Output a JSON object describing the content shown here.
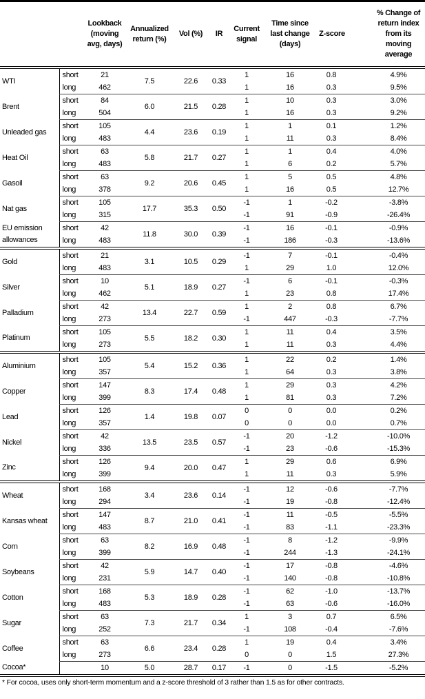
{
  "headers": {
    "name": "",
    "term": "",
    "lookback": "Lookback (moving avg, days)",
    "annual": "Annualized return (%)",
    "vol": "Vol (%)",
    "ir": "IR",
    "signal": "Current signal",
    "time": "Time since last change (days)",
    "z": "Z-score",
    "pct": "% Change of return index from its moving average"
  },
  "groups": [
    {
      "items": [
        {
          "name": "WTI",
          "annual": "7.5",
          "vol": "22.6",
          "ir": "0.33",
          "rows": [
            {
              "term": "short",
              "lookback": "21",
              "signal": "1",
              "time": "16",
              "z": "0.8",
              "pct": "4.9%"
            },
            {
              "term": "long",
              "lookback": "462",
              "signal": "1",
              "time": "16",
              "z": "0.3",
              "pct": "9.5%"
            }
          ]
        },
        {
          "name": "Brent",
          "annual": "6.0",
          "vol": "21.5",
          "ir": "0.28",
          "rows": [
            {
              "term": "short",
              "lookback": "84",
              "signal": "1",
              "time": "10",
              "z": "0.3",
              "pct": "3.0%"
            },
            {
              "term": "long",
              "lookback": "504",
              "signal": "1",
              "time": "16",
              "z": "0.3",
              "pct": "9.2%"
            }
          ]
        },
        {
          "name": "Unleaded gas",
          "annual": "4.4",
          "vol": "23.6",
          "ir": "0.19",
          "rows": [
            {
              "term": "short",
              "lookback": "105",
              "signal": "1",
              "time": "1",
              "z": "0.1",
              "pct": "1.2%"
            },
            {
              "term": "long",
              "lookback": "483",
              "signal": "1",
              "time": "11",
              "z": "0.3",
              "pct": "8.4%"
            }
          ]
        },
        {
          "name": "Heat Oil",
          "annual": "5.8",
          "vol": "21.7",
          "ir": "0.27",
          "rows": [
            {
              "term": "short",
              "lookback": "63",
              "signal": "1",
              "time": "1",
              "z": "0.4",
              "pct": "4.0%"
            },
            {
              "term": "long",
              "lookback": "483",
              "signal": "1",
              "time": "6",
              "z": "0.2",
              "pct": "5.7%"
            }
          ]
        },
        {
          "name": "Gasoil",
          "annual": "9.2",
          "vol": "20.6",
          "ir": "0.45",
          "rows": [
            {
              "term": "short",
              "lookback": "63",
              "signal": "1",
              "time": "5",
              "z": "0.5",
              "pct": "4.8%"
            },
            {
              "term": "long",
              "lookback": "378",
              "signal": "1",
              "time": "16",
              "z": "0.5",
              "pct": "12.7%"
            }
          ]
        },
        {
          "name": "Nat gas",
          "annual": "17.7",
          "vol": "35.3",
          "ir": "0.50",
          "rows": [
            {
              "term": "short",
              "lookback": "105",
              "signal": "-1",
              "time": "1",
              "z": "-0.2",
              "pct": "-3.8%"
            },
            {
              "term": "long",
              "lookback": "315",
              "signal": "-1",
              "time": "91",
              "z": "-0.9",
              "pct": "-26.4%"
            }
          ]
        },
        {
          "name": "EU emission allowances",
          "annual": "11.8",
          "vol": "30.0",
          "ir": "0.39",
          "rows": [
            {
              "term": "short",
              "lookback": "42",
              "signal": "-1",
              "time": "16",
              "z": "-0.1",
              "pct": "-0.9%"
            },
            {
              "term": "long",
              "lookback": "483",
              "signal": "-1",
              "time": "186",
              "z": "-0.3",
              "pct": "-13.6%"
            }
          ]
        }
      ]
    },
    {
      "items": [
        {
          "name": "Gold",
          "annual": "3.1",
          "vol": "10.5",
          "ir": "0.29",
          "rows": [
            {
              "term": "short",
              "lookback": "21",
              "signal": "-1",
              "time": "7",
              "z": "-0.1",
              "pct": "-0.4%"
            },
            {
              "term": "long",
              "lookback": "483",
              "signal": "1",
              "time": "29",
              "z": "1.0",
              "pct": "12.0%"
            }
          ]
        },
        {
          "name": "Silver",
          "annual": "5.1",
          "vol": "18.9",
          "ir": "0.27",
          "rows": [
            {
              "term": "short",
              "lookback": "10",
              "signal": "-1",
              "time": "6",
              "z": "-0.1",
              "pct": "-0.3%"
            },
            {
              "term": "long",
              "lookback": "462",
              "signal": "1",
              "time": "23",
              "z": "0.8",
              "pct": "17.4%"
            }
          ]
        },
        {
          "name": "Palladium",
          "annual": "13.4",
          "vol": "22.7",
          "ir": "0.59",
          "rows": [
            {
              "term": "short",
              "lookback": "42",
              "signal": "1",
              "time": "2",
              "z": "0.8",
              "pct": "6.7%"
            },
            {
              "term": "long",
              "lookback": "273",
              "signal": "-1",
              "time": "447",
              "z": "-0.3",
              "pct": "-7.7%"
            }
          ]
        },
        {
          "name": "Platinum",
          "annual": "5.5",
          "vol": "18.2",
          "ir": "0.30",
          "rows": [
            {
              "term": "short",
              "lookback": "105",
              "signal": "1",
              "time": "11",
              "z": "0.4",
              "pct": "3.5%"
            },
            {
              "term": "long",
              "lookback": "273",
              "signal": "1",
              "time": "11",
              "z": "0.3",
              "pct": "4.4%"
            }
          ]
        }
      ]
    },
    {
      "items": [
        {
          "name": "Aluminium",
          "annual": "5.4",
          "vol": "15.2",
          "ir": "0.36",
          "rows": [
            {
              "term": "short",
              "lookback": "105",
              "signal": "1",
              "time": "22",
              "z": "0.2",
              "pct": "1.4%"
            },
            {
              "term": "long",
              "lookback": "357",
              "signal": "1",
              "time": "64",
              "z": "0.3",
              "pct": "3.8%"
            }
          ]
        },
        {
          "name": "Copper",
          "annual": "8.3",
          "vol": "17.4",
          "ir": "0.48",
          "rows": [
            {
              "term": "short",
              "lookback": "147",
              "signal": "1",
              "time": "29",
              "z": "0.3",
              "pct": "4.2%"
            },
            {
              "term": "long",
              "lookback": "399",
              "signal": "1",
              "time": "81",
              "z": "0.3",
              "pct": "7.2%"
            }
          ]
        },
        {
          "name": "Lead",
          "annual": "1.4",
          "vol": "19.8",
          "ir": "0.07",
          "rows": [
            {
              "term": "short",
              "lookback": "126",
              "signal": "0",
              "time": "0",
              "z": "0.0",
              "pct": "0.2%"
            },
            {
              "term": "long",
              "lookback": "357",
              "signal": "0",
              "time": "0",
              "z": "0.0",
              "pct": "0.7%"
            }
          ]
        },
        {
          "name": "Nickel",
          "annual": "13.5",
          "vol": "23.5",
          "ir": "0.57",
          "rows": [
            {
              "term": "short",
              "lookback": "42",
              "signal": "-1",
              "time": "20",
              "z": "-1.2",
              "pct": "-10.0%"
            },
            {
              "term": "long",
              "lookback": "336",
              "signal": "-1",
              "time": "23",
              "z": "-0.6",
              "pct": "-15.3%"
            }
          ]
        },
        {
          "name": "Zinc",
          "annual": "9.4",
          "vol": "20.0",
          "ir": "0.47",
          "rows": [
            {
              "term": "short",
              "lookback": "126",
              "signal": "1",
              "time": "29",
              "z": "0.6",
              "pct": "6.9%"
            },
            {
              "term": "long",
              "lookback": "399",
              "signal": "1",
              "time": "11",
              "z": "0.3",
              "pct": "5.9%"
            }
          ]
        }
      ]
    },
    {
      "items": [
        {
          "name": "Wheat",
          "annual": "3.4",
          "vol": "23.6",
          "ir": "0.14",
          "rows": [
            {
              "term": "short",
              "lookback": "168",
              "signal": "-1",
              "time": "12",
              "z": "-0.6",
              "pct": "-7.7%"
            },
            {
              "term": "long",
              "lookback": "294",
              "signal": "-1",
              "time": "19",
              "z": "-0.8",
              "pct": "-12.4%"
            }
          ]
        },
        {
          "name": "Kansas wheat",
          "annual": "8.7",
          "vol": "21.0",
          "ir": "0.41",
          "rows": [
            {
              "term": "short",
              "lookback": "147",
              "signal": "-1",
              "time": "11",
              "z": "-0.5",
              "pct": "-5.5%"
            },
            {
              "term": "long",
              "lookback": "483",
              "signal": "-1",
              "time": "83",
              "z": "-1.1",
              "pct": "-23.3%"
            }
          ]
        },
        {
          "name": "Corn",
          "annual": "8.2",
          "vol": "16.9",
          "ir": "0.48",
          "rows": [
            {
              "term": "short",
              "lookback": "63",
              "signal": "-1",
              "time": "8",
              "z": "-1.2",
              "pct": "-9.9%"
            },
            {
              "term": "long",
              "lookback": "399",
              "signal": "-1",
              "time": "244",
              "z": "-1.3",
              "pct": "-24.1%"
            }
          ]
        },
        {
          "name": "Soybeans",
          "annual": "5.9",
          "vol": "14.7",
          "ir": "0.40",
          "rows": [
            {
              "term": "short",
              "lookback": "42",
              "signal": "-1",
              "time": "17",
              "z": "-0.8",
              "pct": "-4.6%"
            },
            {
              "term": "long",
              "lookback": "231",
              "signal": "-1",
              "time": "140",
              "z": "-0.8",
              "pct": "-10.8%"
            }
          ]
        },
        {
          "name": "Cotton",
          "annual": "5.3",
          "vol": "18.9",
          "ir": "0.28",
          "rows": [
            {
              "term": "short",
              "lookback": "168",
              "signal": "-1",
              "time": "62",
              "z": "-1.0",
              "pct": "-13.7%"
            },
            {
              "term": "long",
              "lookback": "483",
              "signal": "-1",
              "time": "63",
              "z": "-0.6",
              "pct": "-16.0%"
            }
          ]
        },
        {
          "name": "Sugar",
          "annual": "7.3",
          "vol": "21.7",
          "ir": "0.34",
          "rows": [
            {
              "term": "short",
              "lookback": "63",
              "signal": "1",
              "time": "3",
              "z": "0.7",
              "pct": "6.5%"
            },
            {
              "term": "long",
              "lookback": "252",
              "signal": "-1",
              "time": "108",
              "z": "-0.4",
              "pct": "-7.6%"
            }
          ]
        },
        {
          "name": "Coffee",
          "annual": "6.6",
          "vol": "23.4",
          "ir": "0.28",
          "rows": [
            {
              "term": "short",
              "lookback": "63",
              "signal": "1",
              "time": "19",
              "z": "0.4",
              "pct": "3.4%"
            },
            {
              "term": "long",
              "lookback": "273",
              "signal": "0",
              "time": "0",
              "z": "1.5",
              "pct": "27.3%"
            }
          ]
        },
        {
          "name": "Cocoa*",
          "annual": "5.0",
          "vol": "28.7",
          "ir": "0.17",
          "rows": [
            {
              "term": "",
              "lookback": "10",
              "signal": "-1",
              "time": "0",
              "z": "-1.5",
              "pct": "-5.2%"
            }
          ]
        }
      ]
    }
  ],
  "footnote": "* For cocoa, uses only short-term momentum and a z-score threshold of 3 rather than 1.5 as for other contracts."
}
